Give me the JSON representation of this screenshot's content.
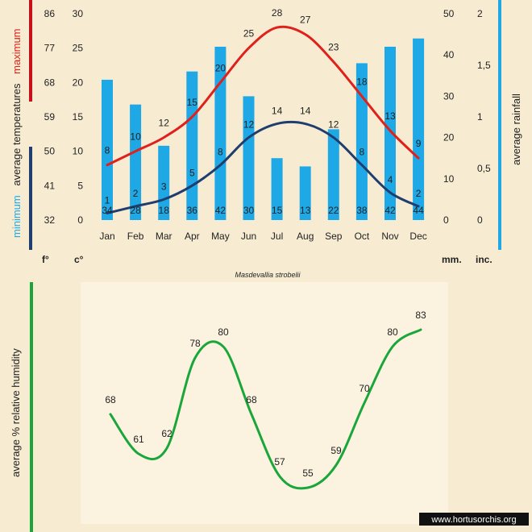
{
  "chart_data": [
    {
      "type": "combo-bar-line",
      "title": "Masdevallia strobelii",
      "categories": [
        "Jan",
        "Feb",
        "Mar",
        "Apr",
        "May",
        "Jun",
        "Jul",
        "Aug",
        "Sep",
        "Oct",
        "Nov",
        "Dec"
      ],
      "series": [
        {
          "name": "maximum",
          "kind": "line",
          "axis": "celsius",
          "color": "#e0201a",
          "values": [
            8,
            10,
            12,
            15,
            20,
            25,
            28,
            27,
            23,
            18,
            13,
            9
          ]
        },
        {
          "name": "minimum",
          "kind": "line",
          "axis": "celsius",
          "color": "#1f3d6e",
          "values": [
            1,
            2,
            3,
            5,
            8,
            12,
            14,
            14,
            12,
            8,
            4,
            2
          ]
        },
        {
          "name": "average rainfall",
          "kind": "bar",
          "axis": "mm",
          "color": "#1fa8e6",
          "values": [
            34,
            28,
            18,
            36,
            42,
            30,
            15,
            13,
            22,
            38,
            42,
            44
          ]
        }
      ],
      "axes": {
        "fahrenheit": {
          "ticks": [
            "32",
            "41",
            "50",
            "59",
            "68",
            "77",
            "86"
          ],
          "unit_label": "f°",
          "color": "#d6a77a"
        },
        "celsius": {
          "ticks": [
            "0",
            "5",
            "10",
            "15",
            "20",
            "25",
            "30"
          ],
          "range": [
            0,
            30
          ],
          "unit_label": "c°"
        },
        "mm": {
          "ticks": [
            "0",
            "10",
            "20",
            "30",
            "40",
            "50"
          ],
          "range": [
            0,
            50
          ],
          "unit_label": "mm."
        },
        "inches": {
          "ticks": [
            "0",
            "0,5",
            "1",
            "1,5",
            "2"
          ],
          "unit_label": "inc."
        }
      },
      "left_title": {
        "minimum": "minimum",
        "middle": "average  temperatures",
        "maximum": "maximum",
        "minimum_color": "#1fa8e6",
        "maximum_color": "#e0201a"
      },
      "right_title": "average rainfall",
      "colors": {
        "max_bar": "#c8101a",
        "min_bar": "#1f3d6e",
        "rain_bar": "#1fa8e6"
      }
    },
    {
      "type": "line",
      "title": "average %  relative humidity",
      "values": [
        68,
        61,
        62,
        78,
        80,
        68,
        57,
        55,
        59,
        70,
        80,
        83
      ],
      "range": [
        50,
        90
      ],
      "color": "#1aa63a"
    }
  ],
  "watermark": "www.hortusorchis.org"
}
